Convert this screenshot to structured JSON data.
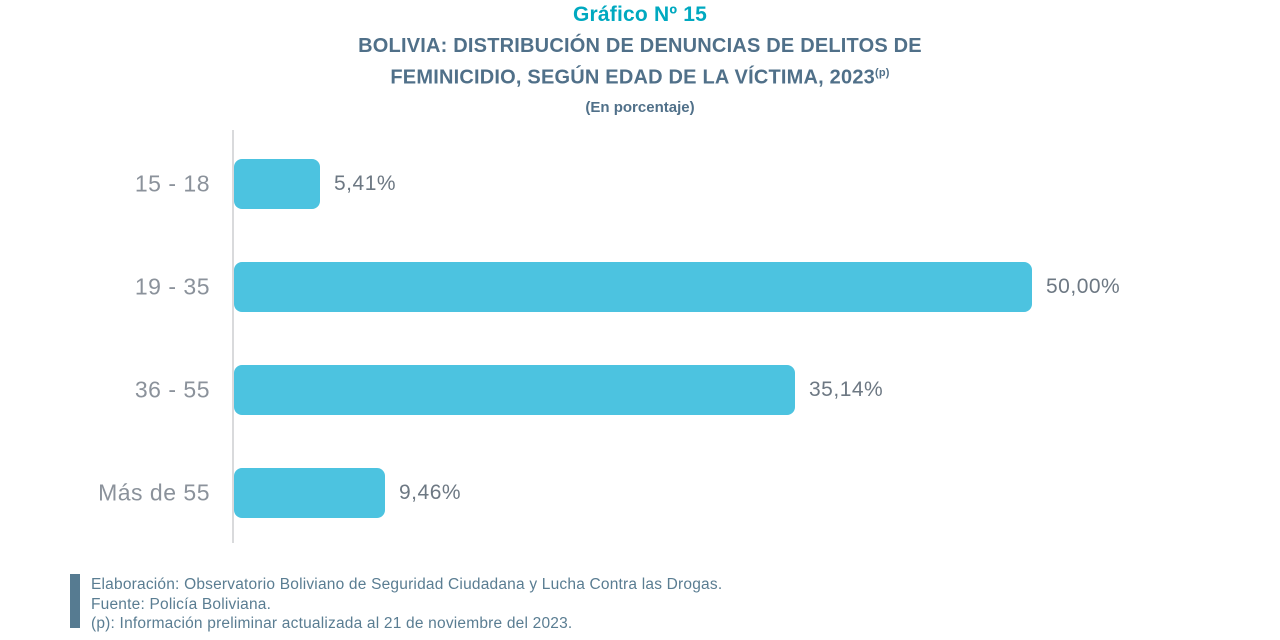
{
  "header": {
    "title": "Gráfico Nº 15",
    "subtitle_line1": "BOLIVIA: DISTRIBUCIÓN DE DENUNCIAS DE DELITOS DE",
    "subtitle_line2": "FEMINICIDIO, SEGÚN EDAD DE LA VÍCTIMA, 2023",
    "subtitle_superscript": "(p)",
    "unit_note": "(En porcentaje)"
  },
  "chart_data": {
    "type": "bar",
    "orientation": "horizontal",
    "title": "Gráfico Nº 15",
    "subtitle": "BOLIVIA: DISTRIBUCIÓN DE DENUNCIAS DE DELITOS DE FEMINICIDIO, SEGÚN EDAD DE LA VÍCTIMA, 2023(p)",
    "unit": "En porcentaje",
    "categories": [
      "15 - 18",
      "19 - 35",
      "36 - 55",
      "Más de 55"
    ],
    "values": [
      5.41,
      50.0,
      35.14,
      9.46
    ],
    "value_labels": [
      "5,41%",
      "50,00%",
      "35,14%",
      "9,46%"
    ],
    "xlabel": "",
    "ylabel": "",
    "xlim": [
      0,
      50
    ],
    "grid": false,
    "legend": false,
    "bar_color": "#4CC3E0"
  },
  "footer": {
    "line1": "Elaboración: Observatorio Boliviano de Seguridad Ciudadana y Lucha Contra las Drogas.",
    "line2": "Fuente: Policía Boliviana.",
    "line3": "(p): Información preliminar actualizada al 21 de noviembre del 2023."
  },
  "colors": {
    "title_teal": "#00A9C0",
    "subtitle_slate": "#507089",
    "bar_cyan": "#4CC3E0",
    "category_label_gray": "#8B929B",
    "value_label_gray": "#6D7883",
    "axis_line_gray": "#D9DADC",
    "footer_slate": "#5A7D92",
    "footer_accent_slate": "#567B91"
  }
}
